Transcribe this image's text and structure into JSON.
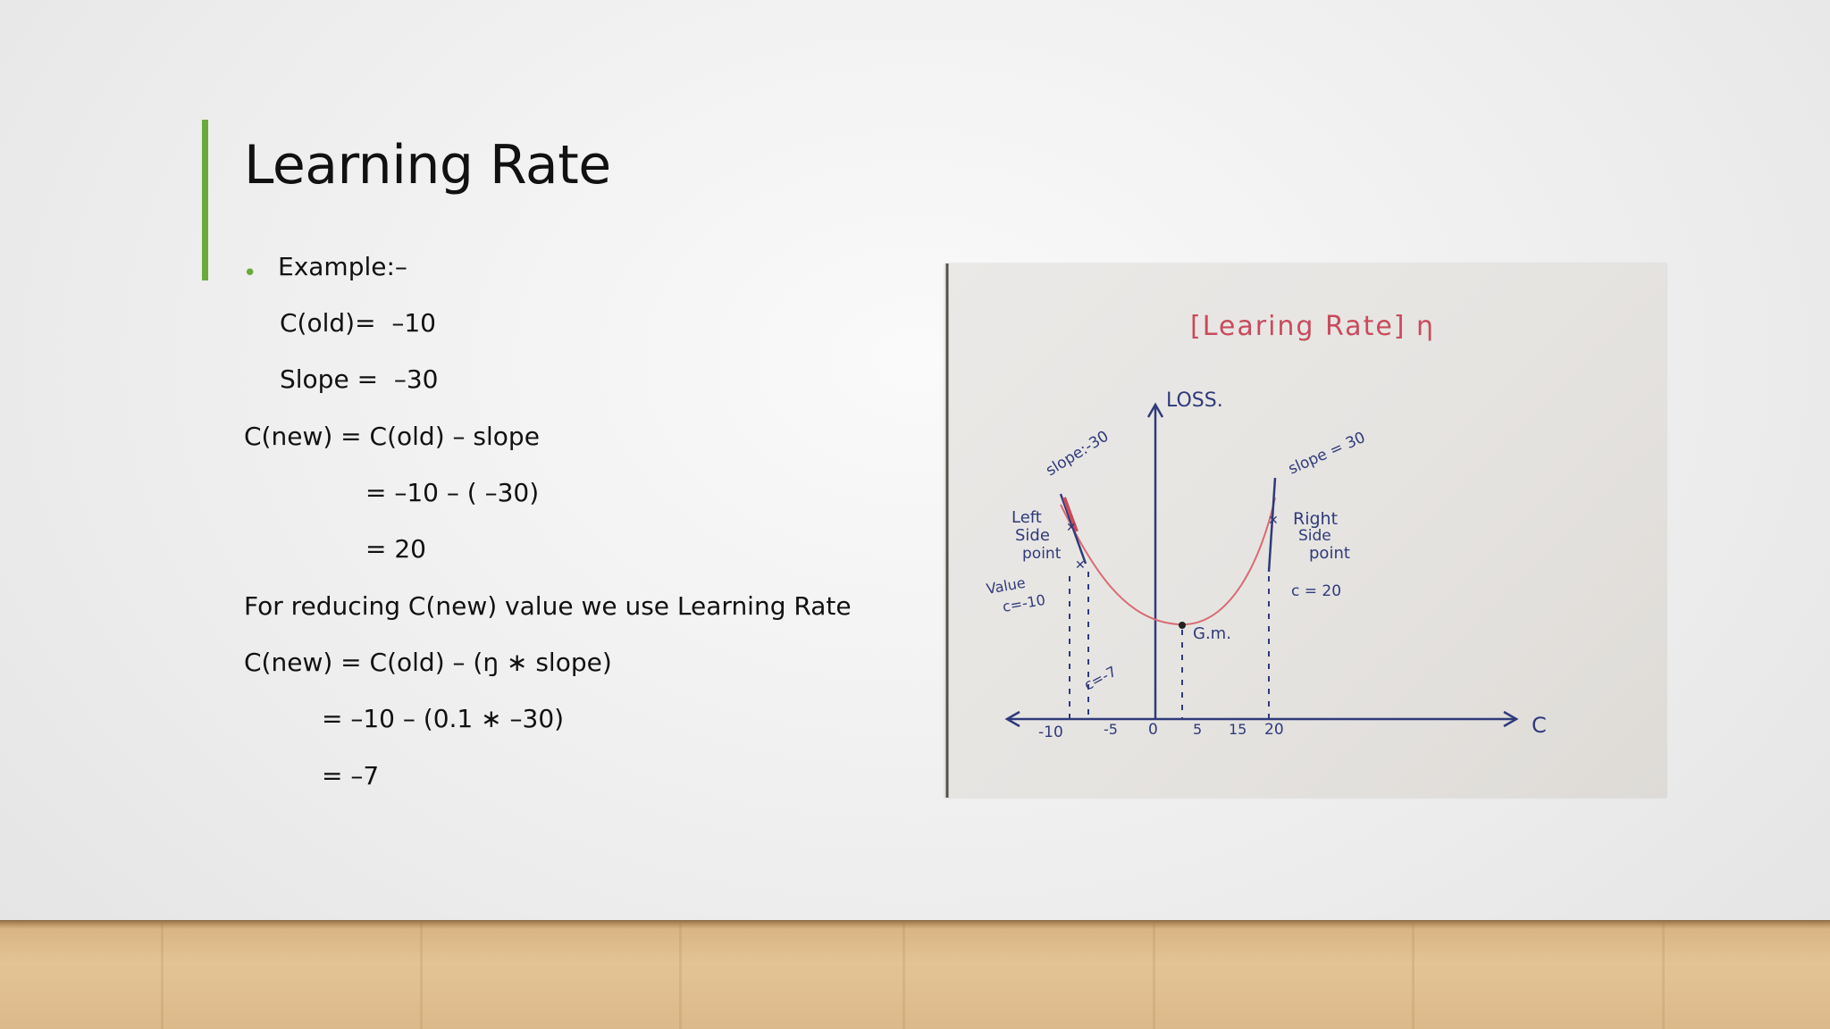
{
  "slide": {
    "title": "Learning Rate",
    "bullet": "Example:–",
    "lines": {
      "c_old": "C(old)=  –10",
      "slope": "Slope =  –30",
      "formula1": "C(new) = C(old) – slope",
      "calc1": "= –10 – ( –30)",
      "result1": "= 20",
      "note": "For reducing C(new) value we use Learning Rate",
      "formula2": "C(new) = C(old) – (ŋ ∗ slope)",
      "calc2": "= –10 – (0.1 ∗ –30)",
      "result2": "= –7"
    }
  },
  "sketch": {
    "title": "[Learing Rate] η",
    "y_axis_label": "LOSS.",
    "x_axis_label": "C",
    "ticks": [
      "-10",
      "-5",
      "0",
      "5",
      "15",
      "20"
    ],
    "left_slope": "slope:-30",
    "right_slope": "slope = 30",
    "left_label_1": "Left",
    "left_label_2": "Side",
    "left_label_3": "point",
    "left_value_1": "Value",
    "left_value_2": "c=-10",
    "right_label_1": "Right",
    "right_label_2": "Side",
    "right_label_3": "point",
    "right_value": "c = 20",
    "minimum_label": "G.m.",
    "new_point_label": "c=-7"
  },
  "colors": {
    "accent": "#6aaa3c",
    "ink_blue": "#2f3a7a",
    "ink_red": "#c84b5c",
    "curve": "#d86a72"
  }
}
